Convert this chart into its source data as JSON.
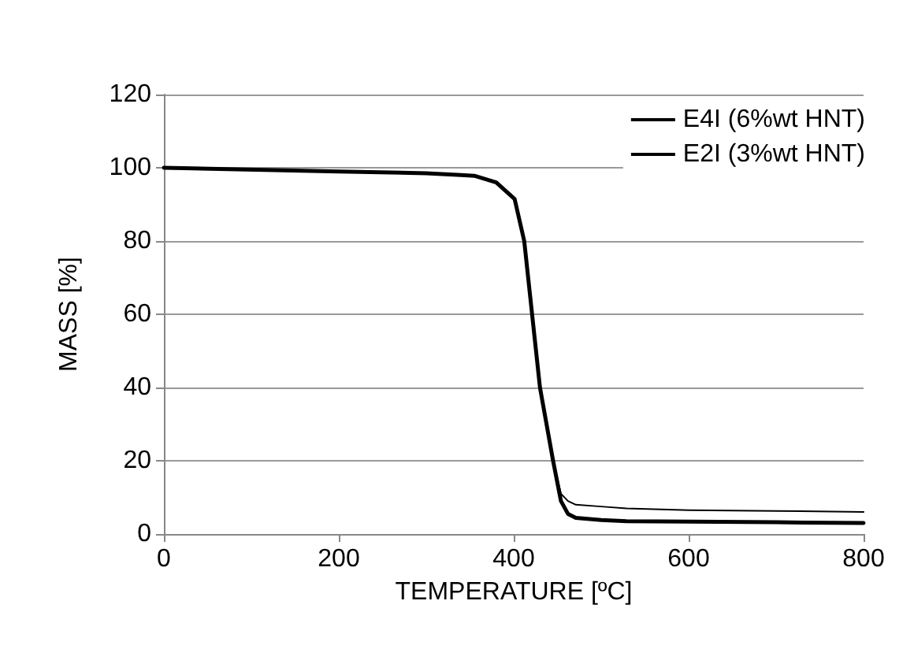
{
  "chart_data": {
    "type": "line",
    "xlabel": "TEMPERATURE [ºC]",
    "ylabel": "MASS [%]",
    "xlim": [
      0,
      800
    ],
    "ylim": [
      0,
      120
    ],
    "xticks": [
      0,
      200,
      400,
      600,
      800
    ],
    "yticks": [
      0,
      20,
      40,
      60,
      80,
      100,
      120
    ],
    "grid": "y",
    "legend": "top right",
    "marker": "none",
    "series": [
      {
        "name": "E4I (6%wt HNT)",
        "color": "#000000",
        "x": [
          0,
          200,
          300,
          340,
          355,
          380,
          401,
          412,
          430,
          445,
          454,
          462,
          471,
          500,
          529,
          600,
          700,
          800
        ],
        "values": [
          100,
          99,
          98.5,
          98,
          97.8,
          96,
          91.5,
          80,
          40,
          20,
          11,
          9,
          8,
          7.5,
          7,
          6.5,
          6.3,
          6
        ]
      },
      {
        "name": "E2I (3%wt HNT)",
        "color": "#000000",
        "x": [
          0,
          200,
          300,
          340,
          355,
          380,
          401,
          412,
          430,
          445,
          454,
          462,
          471,
          500,
          529,
          600,
          700,
          800
        ],
        "values": [
          100,
          99,
          98.5,
          98,
          97.8,
          96,
          91.5,
          80,
          40,
          20,
          9,
          5.5,
          4.4,
          3.8,
          3.5,
          3.4,
          3.2,
          3
        ]
      }
    ]
  }
}
